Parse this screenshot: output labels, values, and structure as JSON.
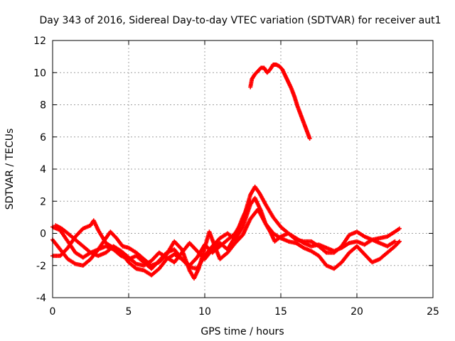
{
  "chart_data": {
    "type": "scatter",
    "title": "Day 343 of 2016, Sidereal Day-to-day VTEC variation (SDTVAR) for receiver aut1",
    "xlabel": "GPS time / hours",
    "ylabel": "SDTVAR / TECUs",
    "xlim": [
      0,
      25
    ],
    "ylim": [
      -4,
      12
    ],
    "xticks": [
      0,
      5,
      10,
      15,
      20,
      25
    ],
    "yticks": [
      -4,
      -2,
      0,
      2,
      4,
      6,
      8,
      10,
      12
    ],
    "grid": true,
    "marker": "plus",
    "series_color": "#ff0000",
    "series": [
      {
        "name": "track-1",
        "points": [
          [
            0.0,
            0.4
          ],
          [
            0.5,
            0.2
          ],
          [
            1.0,
            -0.5
          ],
          [
            1.5,
            -1.2
          ],
          [
            2.0,
            -1.5
          ],
          [
            2.5,
            -1.2
          ],
          [
            3.0,
            -1.0
          ],
          [
            3.5,
            -0.8
          ],
          [
            4.0,
            -1.0
          ],
          [
            4.5,
            -1.4
          ],
          [
            5.0,
            -1.6
          ],
          [
            5.5,
            -1.4
          ],
          [
            6.0,
            -1.8
          ],
          [
            6.5,
            -2.2
          ],
          [
            7.0,
            -1.7
          ],
          [
            7.5,
            -1.2
          ],
          [
            8.0,
            -1.0
          ],
          [
            8.5,
            -1.6
          ],
          [
            9.0,
            -2.0
          ],
          [
            9.5,
            -1.5
          ],
          [
            10.0,
            -0.7
          ],
          [
            10.5,
            -1.2
          ],
          [
            11.0,
            -0.8
          ],
          [
            11.5,
            -0.4
          ],
          [
            12.0,
            0.0
          ],
          [
            12.5,
            0.8
          ],
          [
            13.0,
            2.4
          ],
          [
            13.3,
            2.9
          ],
          [
            13.6,
            2.5
          ],
          [
            14.0,
            1.8
          ],
          [
            14.5,
            1.0
          ],
          [
            15.0,
            0.4
          ],
          [
            15.5,
            0.0
          ],
          [
            16.0,
            -0.3
          ],
          [
            16.5,
            -0.6
          ],
          [
            17.0,
            -0.8
          ],
          [
            17.5,
            -0.7
          ],
          [
            18.0,
            -0.9
          ],
          [
            18.5,
            -1.1
          ],
          [
            19.0,
            -0.9
          ],
          [
            19.5,
            -0.6
          ],
          [
            20.0,
            -0.5
          ],
          [
            20.5,
            -0.7
          ],
          [
            21.0,
            -0.4
          ],
          [
            21.5,
            -0.3
          ],
          [
            22.0,
            -0.2
          ],
          [
            22.5,
            0.1
          ],
          [
            22.8,
            0.3
          ]
        ]
      },
      {
        "name": "track-2",
        "points": [
          [
            0.0,
            -0.4
          ],
          [
            0.5,
            -1.0
          ],
          [
            1.0,
            -1.6
          ],
          [
            1.5,
            -1.9
          ],
          [
            2.0,
            -2.0
          ],
          [
            2.5,
            -1.6
          ],
          [
            3.0,
            -1.0
          ],
          [
            3.5,
            -0.3
          ],
          [
            3.8,
            0.1
          ],
          [
            4.2,
            -0.3
          ],
          [
            4.6,
            -0.8
          ],
          [
            5.0,
            -0.9
          ],
          [
            5.5,
            -1.2
          ],
          [
            6.0,
            -1.6
          ],
          [
            6.5,
            -2.0
          ],
          [
            7.0,
            -1.8
          ],
          [
            7.5,
            -1.3
          ],
          [
            8.0,
            -0.5
          ],
          [
            8.5,
            -1.0
          ],
          [
            9.0,
            -2.3
          ],
          [
            9.3,
            -2.8
          ],
          [
            9.6,
            -2.2
          ],
          [
            10.0,
            -0.9
          ],
          [
            10.3,
            0.1
          ],
          [
            10.7,
            -0.9
          ],
          [
            11.0,
            -1.6
          ],
          [
            11.5,
            -1.2
          ],
          [
            12.0,
            -0.6
          ],
          [
            12.5,
            -0.1
          ],
          [
            13.0,
            0.9
          ],
          [
            13.5,
            1.5
          ],
          [
            14.0,
            0.6
          ],
          [
            14.5,
            0.0
          ],
          [
            15.0,
            -0.3
          ],
          [
            15.5,
            -0.5
          ],
          [
            16.0,
            -0.6
          ],
          [
            16.5,
            -0.9
          ],
          [
            17.0,
            -1.1
          ],
          [
            17.5,
            -1.4
          ],
          [
            18.0,
            -2.0
          ],
          [
            18.5,
            -2.2
          ],
          [
            19.0,
            -1.8
          ],
          [
            19.5,
            -1.2
          ],
          [
            20.0,
            -0.8
          ],
          [
            20.5,
            -1.3
          ],
          [
            21.0,
            -1.8
          ],
          [
            21.5,
            -1.6
          ],
          [
            22.0,
            -1.2
          ],
          [
            22.5,
            -0.8
          ],
          [
            22.8,
            -0.5
          ]
        ]
      },
      {
        "name": "track-3",
        "points": [
          [
            0.0,
            -1.4
          ],
          [
            0.5,
            -1.4
          ],
          [
            1.0,
            -0.9
          ],
          [
            1.5,
            -0.2
          ],
          [
            2.0,
            0.3
          ],
          [
            2.5,
            0.5
          ],
          [
            2.7,
            0.8
          ],
          [
            3.0,
            0.2
          ],
          [
            3.5,
            -0.6
          ],
          [
            4.0,
            -0.9
          ],
          [
            4.5,
            -1.2
          ],
          [
            5.0,
            -1.8
          ],
          [
            5.5,
            -2.2
          ],
          [
            6.0,
            -2.3
          ],
          [
            6.5,
            -2.6
          ],
          [
            7.0,
            -2.2
          ],
          [
            7.5,
            -1.6
          ],
          [
            8.0,
            -1.3
          ],
          [
            8.5,
            -1.6
          ],
          [
            9.0,
            -2.1
          ],
          [
            9.5,
            -2.2
          ],
          [
            10.0,
            -1.4
          ],
          [
            10.5,
            -0.8
          ],
          [
            11.0,
            -0.3
          ],
          [
            11.5,
            0.0
          ],
          [
            12.0,
            -0.4
          ],
          [
            12.5,
            0.4
          ],
          [
            13.0,
            1.8
          ],
          [
            13.3,
            2.2
          ],
          [
            13.7,
            1.4
          ],
          [
            14.0,
            0.6
          ],
          [
            14.3,
            0.1
          ],
          [
            14.6,
            -0.5
          ],
          [
            15.0,
            -0.2
          ],
          [
            15.5,
            0.0
          ],
          [
            16.0,
            -0.4
          ],
          [
            16.5,
            -0.5
          ],
          [
            17.0,
            -0.5
          ],
          [
            17.5,
            -0.8
          ],
          [
            18.0,
            -1.2
          ],
          [
            18.5,
            -1.2
          ],
          [
            19.0,
            -0.8
          ],
          [
            19.5,
            -0.1
          ],
          [
            20.0,
            0.1
          ],
          [
            20.5,
            -0.2
          ],
          [
            21.0,
            -0.4
          ],
          [
            21.5,
            -0.6
          ],
          [
            22.0,
            -0.8
          ],
          [
            22.5,
            -0.5
          ]
        ]
      },
      {
        "name": "track-4",
        "points": [
          [
            0.2,
            0.5
          ],
          [
            0.6,
            0.3
          ],
          [
            1.0,
            0.0
          ],
          [
            1.5,
            -0.4
          ],
          [
            2.0,
            -0.8
          ],
          [
            2.5,
            -1.2
          ],
          [
            3.0,
            -1.4
          ],
          [
            3.5,
            -1.2
          ],
          [
            4.0,
            -0.8
          ],
          [
            4.5,
            -1.1
          ],
          [
            5.0,
            -1.5
          ],
          [
            5.5,
            -1.9
          ],
          [
            6.0,
            -2.0
          ],
          [
            6.5,
            -1.7
          ],
          [
            7.0,
            -1.2
          ],
          [
            7.5,
            -1.5
          ],
          [
            8.0,
            -1.8
          ],
          [
            8.5,
            -1.2
          ],
          [
            9.0,
            -0.6
          ],
          [
            9.5,
            -1.1
          ],
          [
            10.0,
            -1.6
          ],
          [
            10.5,
            -1.0
          ],
          [
            11.0,
            -0.6
          ],
          [
            11.5,
            -1.0
          ],
          [
            12.0,
            -0.2
          ],
          [
            12.5,
            1.0
          ],
          [
            13.0,
            2.0
          ]
        ]
      },
      {
        "name": "track-5",
        "points": [
          [
            13.0,
            9.1
          ],
          [
            13.1,
            9.6
          ],
          [
            13.3,
            9.9
          ],
          [
            13.5,
            10.1
          ],
          [
            13.7,
            10.3
          ],
          [
            13.9,
            10.3
          ],
          [
            14.1,
            10.0
          ],
          [
            14.3,
            10.2
          ],
          [
            14.5,
            10.5
          ],
          [
            14.7,
            10.5
          ],
          [
            14.9,
            10.4
          ],
          [
            15.1,
            10.2
          ],
          [
            15.3,
            9.8
          ],
          [
            15.5,
            9.4
          ],
          [
            15.7,
            9.0
          ],
          [
            15.9,
            8.5
          ],
          [
            16.1,
            7.9
          ],
          [
            16.3,
            7.4
          ],
          [
            16.5,
            6.9
          ],
          [
            16.7,
            6.4
          ],
          [
            16.9,
            5.9
          ]
        ]
      }
    ]
  }
}
